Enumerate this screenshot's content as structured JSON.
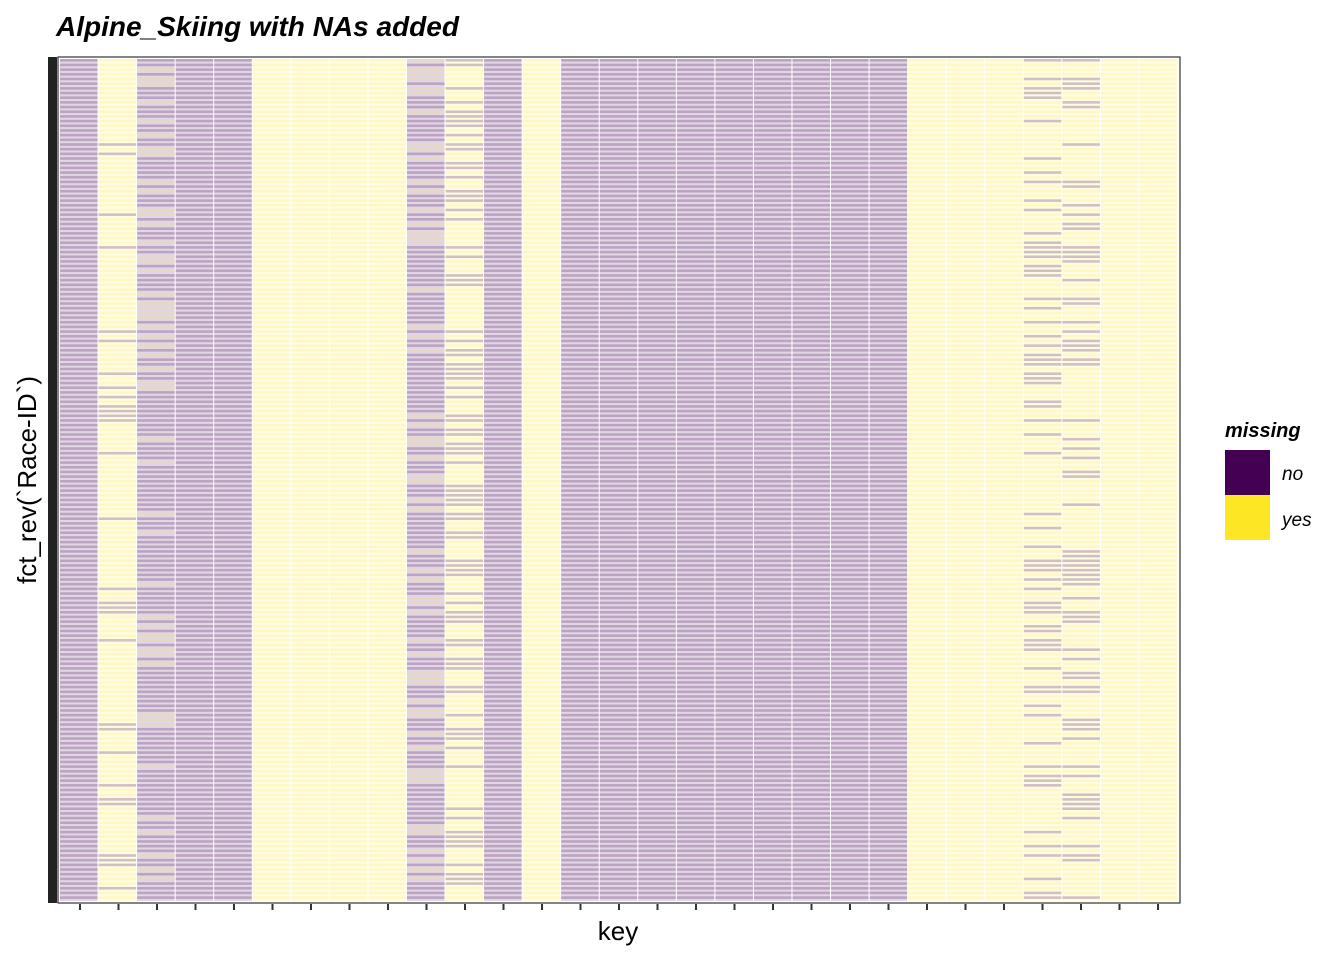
{
  "chart_data": {
    "type": "heatmap",
    "title": "Alpine_Skiing with NAs added",
    "xlabel": "key",
    "ylabel": "fct_rev(`Race-ID`)",
    "x_tick_labels_shown": false,
    "y_tick_labels_shown": false,
    "num_columns": 29,
    "column_missing_rate": [
      0.0,
      0.85,
      0.2,
      0.0,
      0.0,
      1.0,
      1.0,
      1.0,
      1.0,
      0.3,
      0.6,
      0.0,
      1.0,
      0.0,
      0.0,
      0.0,
      0.0,
      0.0,
      0.0,
      0.0,
      0.0,
      0.0,
      1.0,
      1.0,
      1.0,
      0.6,
      0.6,
      1.0,
      1.0
    ],
    "fill_values": [
      "no",
      "yes"
    ],
    "legend": {
      "title": "missing",
      "entries": [
        {
          "label": "no",
          "color": "#440154"
        },
        {
          "label": "yes",
          "color": "#FDE725"
        }
      ],
      "placement": "right"
    },
    "colors": {
      "no": "#440154",
      "yes": "#FDE725",
      "panel_border": "#333333"
    }
  }
}
